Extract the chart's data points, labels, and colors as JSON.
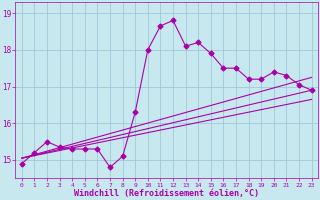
{
  "xlabel": "Windchill (Refroidissement éolien,°C)",
  "xlim": [
    -0.5,
    23.5
  ],
  "ylim": [
    14.5,
    19.3
  ],
  "yticks": [
    15,
    16,
    17,
    18,
    19
  ],
  "xticks": [
    0,
    1,
    2,
    3,
    4,
    5,
    6,
    7,
    8,
    9,
    10,
    11,
    12,
    13,
    14,
    15,
    16,
    17,
    18,
    19,
    20,
    21,
    22,
    23
  ],
  "bg_color": "#c8e8f0",
  "grid_color": "#a0c8d8",
  "line_color": "#aa00aa",
  "main_x": [
    0,
    1,
    2,
    3,
    4,
    5,
    6,
    7,
    8,
    9,
    10,
    11,
    12,
    13,
    14,
    15,
    16,
    17,
    18,
    19,
    20,
    21,
    22,
    23
  ],
  "main_y": [
    14.9,
    15.2,
    15.5,
    15.35,
    15.3,
    15.3,
    15.3,
    14.8,
    15.1,
    16.3,
    18.0,
    18.65,
    18.8,
    18.1,
    18.2,
    17.9,
    17.5,
    17.5,
    17.2,
    17.2,
    17.4,
    17.3,
    17.05,
    16.9
  ],
  "trend1_x": [
    0,
    23
  ],
  "trend1_y": [
    15.05,
    17.25
  ],
  "trend2_x": [
    0,
    23
  ],
  "trend2_y": [
    15.05,
    16.9
  ],
  "trend3_x": [
    0,
    23
  ],
  "trend3_y": [
    15.05,
    16.65
  ],
  "font_size": 5.5,
  "xlabel_font_size": 6,
  "marker": "D",
  "marker_size": 2.5,
  "line_width": 0.8
}
